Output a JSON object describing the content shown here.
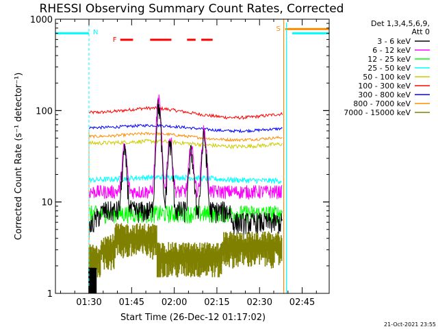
{
  "chart_data": {
    "type": "line",
    "title": "RHESSI Observing Summary Count Rates, Corrected",
    "xlabel": "Start Time (26-Dec-12 01:17:02)",
    "ylabel": "Corrected Count Rate (s⁻¹ detector⁻¹)",
    "yscale": "log",
    "ylim": [
      1,
      1000
    ],
    "xlim_minutes": [
      1.2,
      97.5
    ],
    "xticks": [
      {
        "label": "01:30",
        "t": 13
      },
      {
        "label": "01:45",
        "t": 28
      },
      {
        "label": "02:00",
        "t": 43
      },
      {
        "label": "02:15",
        "t": 58
      },
      {
        "label": "02:30",
        "t": 73
      },
      {
        "label": "02:45",
        "t": 88
      }
    ],
    "yticks": [
      {
        "label": "1",
        "v": 1
      },
      {
        "label": "10",
        "v": 10
      },
      {
        "label": "100",
        "v": 100
      },
      {
        "label": "1000",
        "v": 1000
      }
    ],
    "legend_header": [
      "Det 1,3,4,5,6,9,",
      "Att 0"
    ],
    "legend_placement": "right",
    "series": [
      {
        "name": "3 - 6 keV",
        "color": "#000000"
      },
      {
        "name": "6 - 12 keV",
        "color": "#ff00ff"
      },
      {
        "name": "12 - 25 keV",
        "color": "#00ff00"
      },
      {
        "name": "25 - 50 keV",
        "color": "#00ffff"
      },
      {
        "name": "50 - 100 keV",
        "color": "#cccc00"
      },
      {
        "name": "100 - 300 keV",
        "color": "#ff0000"
      },
      {
        "name": "300 - 800 keV",
        "color": "#0000ff"
      },
      {
        "name": "800 - 7000 keV",
        "color": "#ff8c00"
      },
      {
        "name": "7000 - 15000 keV",
        "color": "#808000"
      }
    ],
    "approx_levels": {
      "t_start": 13,
      "t_end": 81,
      "100 - 300 keV": 95,
      "300 - 800 keV": 65,
      "800 - 7000 keV": 52,
      "50 - 100 keV": 44,
      "25 - 50 keV": 17,
      "6 - 12 keV": 13,
      "12 - 25 keV": 7.5,
      "3 - 6 keV": 8,
      "7000 - 15000 keV": 3.5
    },
    "peaks_6_12_keV": [
      {
        "t": 25.5,
        "v": 40
      },
      {
        "t": 37.5,
        "v": 130
      },
      {
        "t": 41.5,
        "v": 50
      },
      {
        "t": 49,
        "v": 40
      },
      {
        "t": 53.5,
        "v": 60
      }
    ],
    "annotations": {
      "night_label": "N",
      "saa_label": "S",
      "flare_label": "F",
      "night_level": 700,
      "saa_level": 780,
      "night_intervals": [
        [
          1.2,
          13
        ],
        [
          84.5,
          97.5
        ]
      ],
      "night_dashed_lines": [
        13,
        97.5
      ],
      "saa_line": 81.5,
      "saa_interval": [
        82,
        97.5
      ],
      "flare_segments": [
        [
          24,
          28.5
        ],
        [
          34.5,
          42
        ],
        [
          47.5,
          50.5
        ],
        [
          52.5,
          56.5
        ]
      ]
    },
    "footer": "21-Oct-2021 23:55",
    "grid": false
  }
}
